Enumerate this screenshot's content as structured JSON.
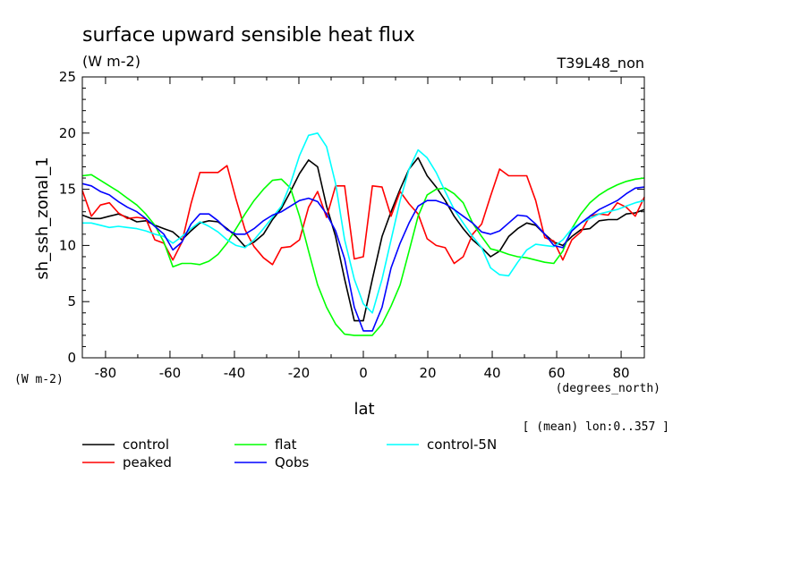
{
  "chart_data": {
    "type": "line",
    "title": "surface upward sensible heat flux",
    "units": "(W m-2)",
    "run_label": "T39L48_non",
    "ylabel": "sh_ssh_zonal_1",
    "y_units_label": "(W m-2)",
    "xlabel": "lat",
    "x_units_label": "(degrees_north)",
    "mean_note": "[ (mean) lon:0..357 ]",
    "xlim": [
      -87.2,
      87.2
    ],
    "ylim": [
      0,
      25
    ],
    "xticks": [
      -80,
      -60,
      -40,
      -20,
      0,
      20,
      40,
      60,
      80
    ],
    "yticks": [
      0,
      5,
      10,
      15,
      20,
      25
    ],
    "x": [
      -87.2,
      -84.4,
      -81.6,
      -78.8,
      -76.0,
      -73.2,
      -70.3,
      -67.5,
      -64.7,
      -61.9,
      -59.1,
      -56.3,
      -53.5,
      -50.7,
      -47.9,
      -45.1,
      -42.3,
      -39.5,
      -36.7,
      -33.9,
      -31.0,
      -28.2,
      -25.4,
      -22.6,
      -19.8,
      -17.0,
      -14.2,
      -11.4,
      -8.6,
      -5.8,
      -2.8,
      0.0,
      2.8,
      5.8,
      8.6,
      11.4,
      14.2,
      17.0,
      19.8,
      22.6,
      25.4,
      28.2,
      31.0,
      33.9,
      36.7,
      39.5,
      42.3,
      45.1,
      47.9,
      50.7,
      53.5,
      56.3,
      59.1,
      61.9,
      64.7,
      67.5,
      70.3,
      73.2,
      76.0,
      78.8,
      81.6,
      84.4,
      87.2
    ],
    "series": [
      {
        "name": "control",
        "color": "#000000",
        "values": [
          12.7,
          12.4,
          12.4,
          12.6,
          12.8,
          12.5,
          12.1,
          12.2,
          11.8,
          11.5,
          11.2,
          10.5,
          11.3,
          12.0,
          12.2,
          12.1,
          11.5,
          10.8,
          9.9,
          10.3,
          11.0,
          12.3,
          13.3,
          14.8,
          16.4,
          17.6,
          17.0,
          13.5,
          10.8,
          7.0,
          3.3,
          3.3,
          7.0,
          10.8,
          13.0,
          15.0,
          16.8,
          17.8,
          16.2,
          15.2,
          14.0,
          12.6,
          11.5,
          10.5,
          9.8,
          9.0,
          9.5,
          10.8,
          11.5,
          12.0,
          11.8,
          11.0,
          10.3,
          10.0,
          10.8,
          11.4,
          11.5,
          12.2,
          12.3,
          12.3,
          12.8,
          12.9,
          13.2
        ]
      },
      {
        "name": "peaked",
        "color": "#ff0000",
        "values": [
          14.9,
          12.6,
          13.6,
          13.8,
          12.9,
          12.4,
          12.5,
          12.4,
          10.5,
          10.2,
          8.7,
          10.3,
          13.7,
          16.5,
          16.5,
          16.5,
          17.1,
          14.1,
          11.4,
          9.9,
          8.9,
          8.3,
          9.8,
          9.9,
          10.5,
          13.4,
          14.8,
          12.5,
          15.3,
          15.3,
          8.8,
          9.0,
          15.3,
          15.2,
          12.6,
          14.8,
          13.7,
          12.8,
          10.6,
          10.0,
          9.8,
          8.4,
          9.0,
          11.0,
          11.9,
          14.4,
          16.8,
          16.2,
          16.2,
          16.2,
          14.0,
          10.7,
          10.4,
          8.7,
          10.5,
          11.2,
          12.6,
          12.8,
          12.7,
          13.8,
          13.4,
          12.6,
          14.3
        ]
      },
      {
        "name": "flat",
        "color": "#00ff00",
        "values": [
          16.2,
          16.3,
          15.8,
          15.3,
          14.8,
          14.2,
          13.6,
          12.8,
          11.8,
          10.3,
          8.1,
          8.4,
          8.4,
          8.3,
          8.6,
          9.2,
          10.2,
          11.5,
          12.8,
          14.0,
          15.0,
          15.8,
          15.9,
          15.1,
          12.6,
          9.5,
          6.5,
          4.5,
          3.0,
          2.1,
          2.0,
          2.0,
          2.0,
          3.0,
          4.6,
          6.5,
          9.5,
          12.6,
          14.5,
          15.0,
          15.1,
          14.6,
          13.8,
          12.0,
          10.8,
          9.7,
          9.5,
          9.2,
          9.0,
          8.9,
          8.7,
          8.5,
          8.4,
          9.5,
          11.5,
          12.8,
          13.8,
          14.5,
          15.0,
          15.4,
          15.7,
          15.9,
          16.0
        ]
      },
      {
        "name": "control-5N",
        "color": "#00ffff",
        "values": [
          12.0,
          12.0,
          11.8,
          11.6,
          11.7,
          11.6,
          11.5,
          11.3,
          11.0,
          10.8,
          10.2,
          10.8,
          11.5,
          12.1,
          11.7,
          11.2,
          10.5,
          10.0,
          9.8,
          10.5,
          11.5,
          12.5,
          13.5,
          15.5,
          18.0,
          19.8,
          20.0,
          18.8,
          15.5,
          10.5,
          7.0,
          4.8,
          4.0,
          7.0,
          10.5,
          14.0,
          16.8,
          18.5,
          17.8,
          16.5,
          14.8,
          13.2,
          12.0,
          10.8,
          9.8,
          8.0,
          7.4,
          7.3,
          8.5,
          9.6,
          10.1,
          10.0,
          9.9,
          10.5,
          11.5,
          12.0,
          12.4,
          12.8,
          13.0,
          13.2,
          13.5,
          13.8,
          14.0
        ]
      },
      {
        "name": "Qobs",
        "color": "#0000ff",
        "values": [
          15.5,
          15.3,
          14.8,
          14.5,
          13.9,
          13.4,
          13.0,
          12.4,
          11.7,
          11.0,
          9.6,
          10.3,
          11.9,
          12.8,
          12.8,
          12.2,
          11.4,
          11.0,
          11.0,
          11.5,
          12.2,
          12.7,
          13.0,
          13.5,
          14.0,
          14.2,
          13.9,
          12.8,
          11.3,
          8.8,
          4.5,
          2.4,
          2.4,
          4.5,
          8.0,
          10.2,
          12.0,
          13.5,
          14.0,
          14.0,
          13.7,
          13.2,
          12.6,
          12.0,
          11.2,
          11.0,
          11.3,
          12.0,
          12.7,
          12.6,
          11.9,
          11.0,
          10.0,
          9.8,
          11.3,
          12.0,
          12.6,
          13.2,
          13.6,
          14.0,
          14.6,
          15.1,
          15.2
        ]
      }
    ],
    "legend_placement": "bottom"
  }
}
